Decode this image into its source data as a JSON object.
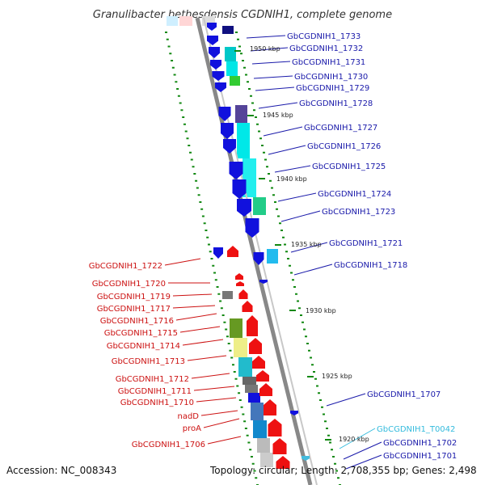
{
  "title": "Granulibacter bethesdensis CGDNIH1, complete genome",
  "footer": {
    "accession": "Accession: NC_008343",
    "topology": "Topology: circular; Length: 2,708,355 bp; Genes: 2,498"
  },
  "colors": {
    "forward_arrow": "#1111dd",
    "reverse_arrow": "#ee1111",
    "forward_label": "#1a1aaa",
    "reverse_label": "#cc1111",
    "trna_label": "#33bbdd",
    "tick": "#118811"
  },
  "ticks": [
    {
      "label": "1950 kbp"
    },
    {
      "label": "1945 kbp"
    },
    {
      "label": "1940 kbp"
    },
    {
      "label": "1935 kbp"
    },
    {
      "label": "1930 kbp"
    },
    {
      "label": "1925 kbp"
    },
    {
      "label": "1920 kbp"
    }
  ],
  "forward_genes": [
    {
      "name": "GbCGDNIH1_1733"
    },
    {
      "name": "GbCGDNIH1_1732"
    },
    {
      "name": "GbCGDNIH1_1731"
    },
    {
      "name": "GbCGDNIH1_1730"
    },
    {
      "name": "GbCGDNIH1_1729"
    },
    {
      "name": "GbCGDNIH1_1728"
    },
    {
      "name": "GbCGDNIH1_1727"
    },
    {
      "name": "GbCGDNIH1_1726"
    },
    {
      "name": "GbCGDNIH1_1725"
    },
    {
      "name": "GbCGDNIH1_1724"
    },
    {
      "name": "GbCGDNIH1_1723"
    },
    {
      "name": "GbCGDNIH1_1721"
    },
    {
      "name": "GbCGDNIH1_1718"
    },
    {
      "name": "GbCGDNIH1_1707"
    },
    {
      "name": "GbCGDNIH1_T0042"
    },
    {
      "name": "GbCGDNIH1_1702"
    },
    {
      "name": "GbCGDNIH1_1701"
    }
  ],
  "reverse_genes": [
    {
      "name": "GbCGDNIH1_1722"
    },
    {
      "name": "GbCGDNIH1_1720"
    },
    {
      "name": "GbCGDNIH1_1719"
    },
    {
      "name": "GbCGDNIH1_1717"
    },
    {
      "name": "GbCGDNIH1_1716"
    },
    {
      "name": "GbCGDNIH1_1715"
    },
    {
      "name": "GbCGDNIH1_1714"
    },
    {
      "name": "GbCGDNIH1_1713"
    },
    {
      "name": "GbCGDNIH1_1712"
    },
    {
      "name": "GbCGDNIH1_1711"
    },
    {
      "name": "GbCGDNIH1_1710"
    },
    {
      "name": "nadD"
    },
    {
      "name": "proA"
    },
    {
      "name": "GbCGDNIH1_1706"
    }
  ]
}
